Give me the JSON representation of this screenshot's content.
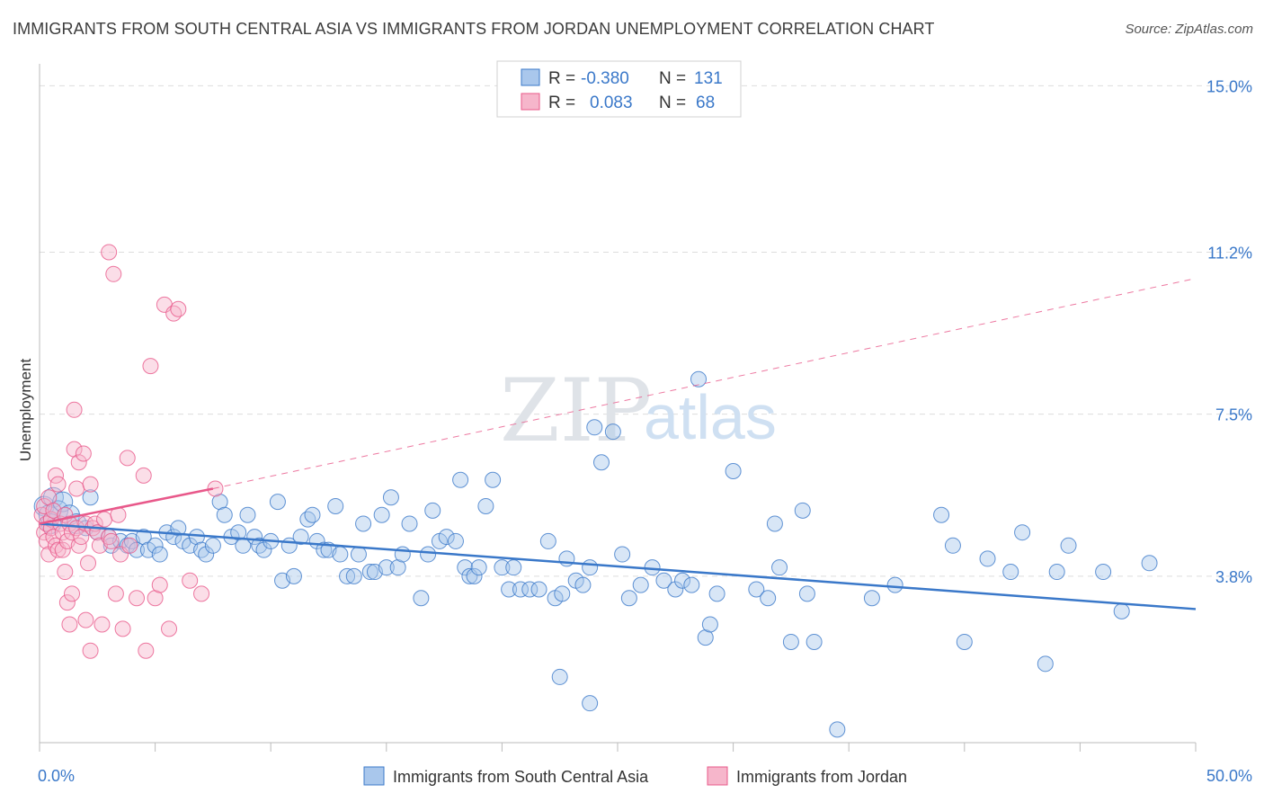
{
  "title": "IMMIGRANTS FROM SOUTH CENTRAL ASIA VS IMMIGRANTS FROM JORDAN UNEMPLOYMENT CORRELATION CHART",
  "source": "Source: ZipAtlas.com",
  "watermark": {
    "zip": "ZIP",
    "atlas": "atlas"
  },
  "colors": {
    "blue": "#3a78c9",
    "blue_fill": "#a9c7ec",
    "pink": "#e8588a",
    "pink_fill": "#f6b6cb",
    "grid": "#dddddd"
  },
  "legend": {
    "rows": [
      {
        "r_label": "R =",
        "r_value": "-0.380",
        "n_label": "N =",
        "n_value": "131"
      },
      {
        "r_label": "R =",
        "r_value": "0.083",
        "n_label": "N =",
        "n_value": "68"
      }
    ]
  },
  "chart_data": {
    "type": "scatter",
    "title": "IMMIGRANTS FROM SOUTH CENTRAL ASIA VS IMMIGRANTS FROM JORDAN UNEMPLOYMENT CORRELATION CHART",
    "xlabel": "",
    "ylabel": "Unemployment",
    "xlim": [
      0,
      50
    ],
    "ylim": [
      0,
      15.5
    ],
    "x_tick_labels": [
      "0.0%",
      "50.0%"
    ],
    "y_ticks": [
      3.8,
      7.5,
      11.2,
      15.0
    ],
    "y_tick_labels": [
      "3.8%",
      "7.5%",
      "11.2%",
      "15.0%"
    ],
    "grid": "horizontal dashed",
    "legend_position": "top-center",
    "series": [
      {
        "name": "Immigrants from South Central Asia",
        "color": "#3a78c9",
        "r": -0.38,
        "n": 131,
        "trend": {
          "x": [
            0,
            50
          ],
          "y": [
            5.0,
            3.05
          ]
        },
        "points": [
          [
            0.2,
            5.4
          ],
          [
            0.4,
            5.2
          ],
          [
            0.6,
            5.6
          ],
          [
            0.8,
            5.3
          ],
          [
            1.0,
            5.5
          ],
          [
            0.5,
            5.0
          ],
          [
            1.3,
            5.2
          ],
          [
            1.6,
            5.0
          ],
          [
            2.0,
            4.9
          ],
          [
            2.5,
            4.8
          ],
          [
            2.2,
            5.6
          ],
          [
            3.0,
            4.7
          ],
          [
            3.1,
            4.5
          ],
          [
            3.5,
            4.6
          ],
          [
            3.8,
            4.5
          ],
          [
            4.0,
            4.6
          ],
          [
            4.2,
            4.4
          ],
          [
            4.5,
            4.7
          ],
          [
            4.7,
            4.4
          ],
          [
            5.0,
            4.5
          ],
          [
            5.2,
            4.3
          ],
          [
            5.5,
            4.8
          ],
          [
            5.8,
            4.7
          ],
          [
            6.0,
            4.9
          ],
          [
            6.2,
            4.6
          ],
          [
            6.5,
            4.5
          ],
          [
            6.8,
            4.7
          ],
          [
            7.0,
            4.4
          ],
          [
            7.2,
            4.3
          ],
          [
            7.5,
            4.5
          ],
          [
            7.8,
            5.5
          ],
          [
            8.0,
            5.2
          ],
          [
            8.3,
            4.7
          ],
          [
            8.6,
            4.8
          ],
          [
            8.8,
            4.5
          ],
          [
            9.0,
            5.2
          ],
          [
            9.3,
            4.7
          ],
          [
            9.5,
            4.5
          ],
          [
            9.7,
            4.4
          ],
          [
            10.0,
            4.6
          ],
          [
            10.3,
            5.5
          ],
          [
            10.5,
            3.7
          ],
          [
            10.8,
            4.5
          ],
          [
            11.0,
            3.8
          ],
          [
            11.3,
            4.7
          ],
          [
            11.6,
            5.1
          ],
          [
            11.8,
            5.2
          ],
          [
            12.0,
            4.6
          ],
          [
            12.3,
            4.4
          ],
          [
            12.5,
            4.4
          ],
          [
            12.8,
            5.4
          ],
          [
            13.0,
            4.3
          ],
          [
            13.3,
            3.8
          ],
          [
            13.6,
            3.8
          ],
          [
            13.8,
            4.3
          ],
          [
            14.0,
            5.0
          ],
          [
            14.3,
            3.9
          ],
          [
            14.5,
            3.9
          ],
          [
            14.8,
            5.2
          ],
          [
            15.0,
            4.0
          ],
          [
            15.2,
            5.6
          ],
          [
            15.5,
            4.0
          ],
          [
            15.7,
            4.3
          ],
          [
            16.0,
            5.0
          ],
          [
            16.5,
            3.3
          ],
          [
            16.8,
            4.3
          ],
          [
            17.0,
            5.3
          ],
          [
            17.3,
            4.6
          ],
          [
            17.6,
            4.7
          ],
          [
            18.0,
            4.6
          ],
          [
            18.2,
            6.0
          ],
          [
            18.4,
            4.0
          ],
          [
            18.6,
            3.8
          ],
          [
            18.8,
            3.8
          ],
          [
            19.0,
            4.0
          ],
          [
            19.3,
            5.4
          ],
          [
            19.6,
            6.0
          ],
          [
            20.0,
            4.0
          ],
          [
            20.3,
            3.5
          ],
          [
            20.5,
            4.0
          ],
          [
            20.8,
            3.5
          ],
          [
            21.2,
            3.5
          ],
          [
            21.6,
            3.5
          ],
          [
            22.0,
            4.6
          ],
          [
            22.3,
            3.3
          ],
          [
            22.6,
            3.4
          ],
          [
            22.8,
            4.2
          ],
          [
            23.2,
            3.7
          ],
          [
            23.5,
            3.6
          ],
          [
            23.8,
            4.0
          ],
          [
            24.0,
            7.2
          ],
          [
            24.3,
            6.4
          ],
          [
            24.8,
            7.1
          ],
          [
            25.2,
            4.3
          ],
          [
            25.5,
            3.3
          ],
          [
            26.0,
            3.6
          ],
          [
            26.5,
            4.0
          ],
          [
            27.0,
            3.7
          ],
          [
            27.5,
            3.5
          ],
          [
            27.8,
            3.7
          ],
          [
            28.2,
            3.6
          ],
          [
            28.5,
            8.3
          ],
          [
            28.8,
            2.4
          ],
          [
            29.0,
            2.7
          ],
          [
            29.3,
            3.4
          ],
          [
            30.0,
            6.2
          ],
          [
            31.0,
            3.5
          ],
          [
            31.5,
            3.3
          ],
          [
            32.0,
            4.0
          ],
          [
            32.5,
            2.3
          ],
          [
            33.0,
            5.3
          ],
          [
            34.5,
            0.3
          ],
          [
            36.0,
            3.3
          ],
          [
            37.0,
            3.6
          ],
          [
            39.0,
            5.2
          ],
          [
            40.0,
            2.3
          ],
          [
            41.0,
            4.2
          ],
          [
            42.0,
            3.9
          ],
          [
            42.5,
            4.8
          ],
          [
            43.5,
            1.8
          ],
          [
            44.0,
            3.9
          ],
          [
            44.5,
            4.5
          ],
          [
            46.0,
            3.9
          ],
          [
            46.8,
            3.0
          ],
          [
            48.0,
            4.1
          ],
          [
            33.2,
            3.4
          ],
          [
            22.5,
            1.5
          ],
          [
            23.8,
            0.9
          ],
          [
            33.5,
            2.3
          ],
          [
            31.8,
            5.0
          ],
          [
            39.5,
            4.5
          ]
        ]
      },
      {
        "name": "Immigrants from Jordan",
        "color": "#e8588a",
        "r": 0.083,
        "n": 68,
        "trend": {
          "x": [
            0,
            7.5
          ],
          "y": [
            5.0,
            5.8
          ],
          "dashed_to": [
            50,
            10.6
          ]
        },
        "points": [
          [
            0.1,
            5.2
          ],
          [
            0.2,
            5.4
          ],
          [
            0.2,
            4.8
          ],
          [
            0.3,
            5.0
          ],
          [
            0.3,
            4.6
          ],
          [
            0.4,
            5.6
          ],
          [
            0.4,
            4.3
          ],
          [
            0.5,
            5.1
          ],
          [
            0.5,
            4.9
          ],
          [
            0.6,
            4.7
          ],
          [
            0.6,
            5.3
          ],
          [
            0.7,
            4.5
          ],
          [
            0.7,
            6.1
          ],
          [
            0.8,
            5.9
          ],
          [
            0.8,
            4.4
          ],
          [
            0.9,
            5.0
          ],
          [
            1.0,
            4.8
          ],
          [
            1.0,
            4.4
          ],
          [
            1.1,
            5.2
          ],
          [
            1.1,
            3.9
          ],
          [
            1.2,
            4.6
          ],
          [
            1.2,
            3.2
          ],
          [
            1.3,
            5.0
          ],
          [
            1.3,
            2.7
          ],
          [
            1.4,
            4.8
          ],
          [
            1.4,
            3.4
          ],
          [
            1.5,
            7.6
          ],
          [
            1.5,
            6.7
          ],
          [
            1.6,
            4.9
          ],
          [
            1.6,
            5.8
          ],
          [
            1.7,
            6.4
          ],
          [
            1.7,
            4.5
          ],
          [
            1.8,
            4.7
          ],
          [
            1.9,
            6.6
          ],
          [
            2.0,
            5.0
          ],
          [
            2.0,
            2.8
          ],
          [
            2.1,
            4.1
          ],
          [
            2.2,
            5.9
          ],
          [
            2.2,
            2.1
          ],
          [
            2.3,
            4.9
          ],
          [
            2.4,
            5.0
          ],
          [
            2.5,
            4.8
          ],
          [
            2.6,
            4.5
          ],
          [
            2.7,
            2.7
          ],
          [
            2.8,
            5.1
          ],
          [
            3.0,
            11.2
          ],
          [
            3.0,
            4.7
          ],
          [
            3.1,
            4.6
          ],
          [
            3.2,
            10.7
          ],
          [
            3.3,
            3.4
          ],
          [
            3.5,
            4.3
          ],
          [
            3.6,
            2.6
          ],
          [
            3.8,
            6.5
          ],
          [
            3.9,
            4.5
          ],
          [
            4.2,
            3.3
          ],
          [
            4.5,
            6.1
          ],
          [
            4.6,
            2.1
          ],
          [
            4.8,
            8.6
          ],
          [
            5.0,
            3.3
          ],
          [
            5.2,
            3.6
          ],
          [
            5.4,
            10.0
          ],
          [
            5.6,
            2.6
          ],
          [
            5.8,
            9.8
          ],
          [
            6.0,
            9.9
          ],
          [
            6.5,
            3.7
          ],
          [
            7.0,
            3.4
          ],
          [
            7.6,
            5.8
          ],
          [
            3.4,
            5.2
          ]
        ]
      }
    ]
  }
}
